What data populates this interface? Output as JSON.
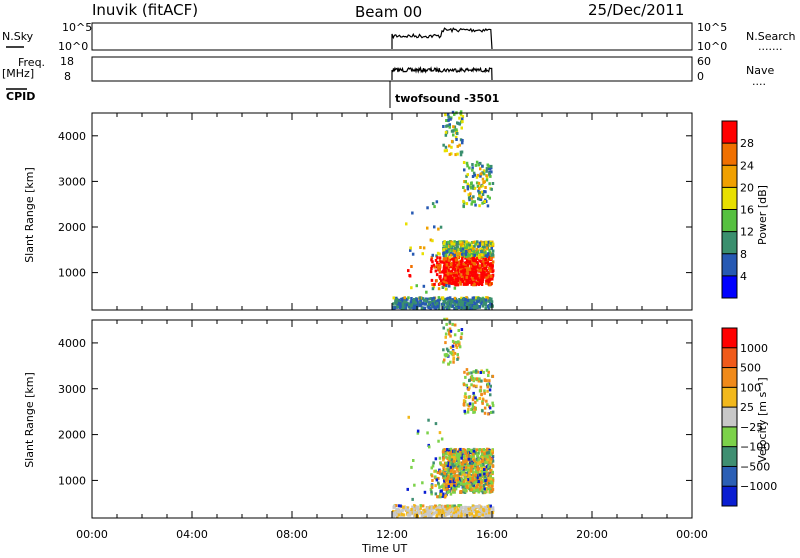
{
  "header": {
    "station": "Inuvik (fitACF)",
    "beam": "Beam 00",
    "date": "25/Dec/2011"
  },
  "top_panels": {
    "nsky_label": "N.Sky",
    "nsky_ticks": [
      "10^5",
      "10^0"
    ],
    "nsearch_label": "N.Search",
    "nsearch_dots": ".......",
    "freq_label": "Freq.",
    "freq_unit": "[MHz]",
    "freq_ticks": [
      "18",
      "8"
    ],
    "nave_label": "Nave",
    "nave_dots": "....",
    "nave_ticks": [
      "60",
      "0"
    ],
    "cpid_label": "CPID",
    "cpid_value": "twofsound -3501"
  },
  "chart_data": [
    {
      "type": "heatmap",
      "panel": "power",
      "ylabel": "Slant Range [km]",
      "xlabel": "",
      "yticks": [
        1000,
        2000,
        3000,
        4000
      ],
      "ylim": [
        180,
        4500
      ],
      "xlim": [
        0,
        24
      ],
      "colorbar": {
        "label": "Power [dB]",
        "ticks": [
          "4",
          "8",
          "12",
          "16",
          "20",
          "24",
          "28"
        ],
        "colors": [
          "#0000ff",
          "#2659b3",
          "#3a8f6e",
          "#56c040",
          "#e8e000",
          "#f0a000",
          "#f07000",
          "#ff0000"
        ]
      }
    },
    {
      "type": "heatmap",
      "panel": "velocity",
      "ylabel": "Slant Range [km]",
      "xlabel": "Time UT",
      "yticks": [
        1000,
        2000,
        3000,
        4000
      ],
      "ylim": [
        180,
        4500
      ],
      "xlim": [
        0,
        24
      ],
      "xticks": [
        "00:00",
        "04:00",
        "08:00",
        "12:00",
        "16:00",
        "20:00",
        "00:00"
      ],
      "colorbar": {
        "label": "Velocity [m s⁻¹]",
        "ticks": [
          "1000",
          "500",
          "100",
          "25",
          "−25",
          "−100",
          "−500",
          "−1000"
        ],
        "colors": [
          "#0a1ed2",
          "#2b5fb5",
          "#3f8f72",
          "#7cd24a",
          "#c8c8c8",
          "#f2b81c",
          "#f08a1a",
          "#f05a1a",
          "#ff0000"
        ]
      }
    }
  ]
}
